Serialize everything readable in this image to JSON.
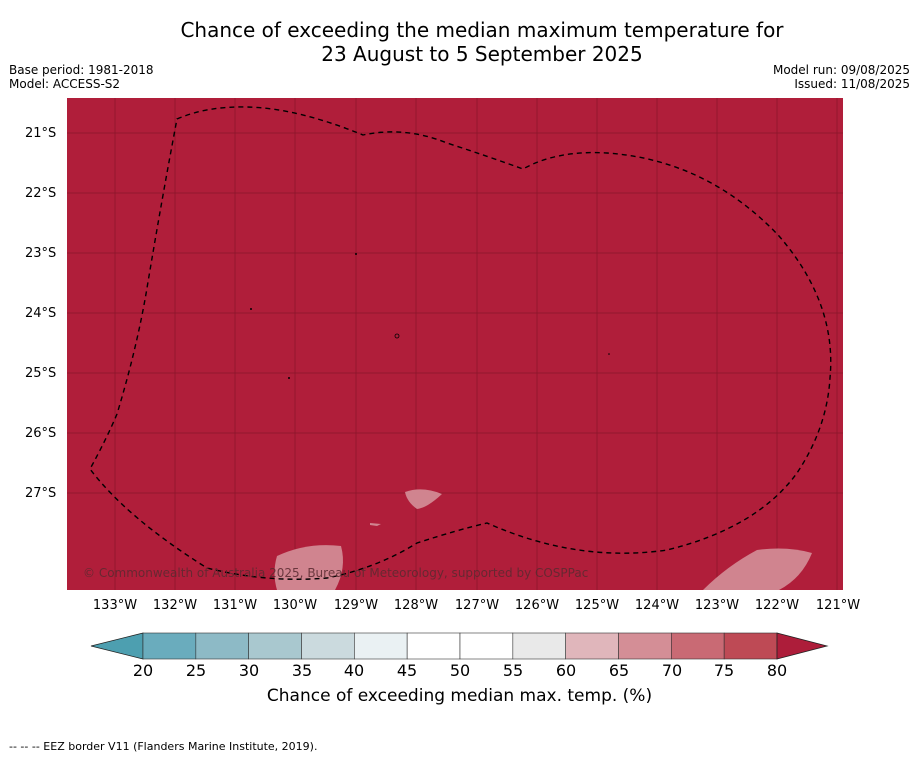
{
  "title_line1": "Chance of exceeding the median maximum temperature for",
  "title_line2": "23 August to 5 September 2025",
  "base_period": "Base period: 1981-2018",
  "model": "Model: ACCESS-S2",
  "model_run": "Model run: 09/08/2025",
  "issued": "Issued: 11/08/2025",
  "latitude_labels": [
    "21°S",
    "22°S",
    "23°S",
    "24°S",
    "25°S",
    "26°S",
    "27°S"
  ],
  "longitude_labels": [
    "133°W",
    "132°W",
    "131°W",
    "130°W",
    "129°W",
    "128°W",
    "127°W",
    "126°W",
    "125°W",
    "124°W",
    "123°W",
    "122°W",
    "121°W"
  ],
  "copyright": "© Commonwealth of Australia 2025, Bureau of Meteorology, supported by COSPPac",
  "colorbar": {
    "ticks": [
      "20",
      "25",
      "30",
      "35",
      "40",
      "45",
      "50",
      "55",
      "60",
      "65",
      "70",
      "75",
      "80"
    ],
    "colors": [
      "#6aacbd",
      "#8dbac6",
      "#a9c8cf",
      "#cbdade",
      "#eaf1f3",
      "#ffffff",
      "#ffffff",
      "#e9e9e9",
      "#e0b6bb",
      "#d48e96",
      "#c96a74",
      "#be4a55"
    ],
    "under_color": "#4d9fb0",
    "over_color": "#ad1d3a",
    "label": "Chance of exceeding median max. temp. (%)"
  },
  "map_fill_color": "#b01e3a",
  "light_patch_color": "#d0848f",
  "footer": "--  --  -- EEZ border V11 (Flanders Marine Institute, 2019)."
}
